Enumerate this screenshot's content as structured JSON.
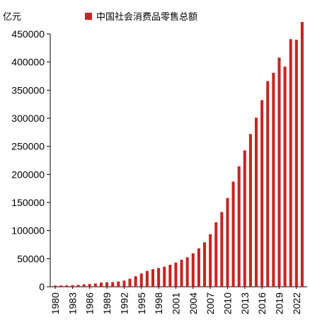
{
  "unit_label": "亿元",
  "colors": {
    "bar": "#c82423",
    "axis": "#000000"
  },
  "chart_data": {
    "type": "bar",
    "title": "",
    "xlabel": "",
    "ylabel": "亿元",
    "legend": {
      "position": "top-center",
      "entries": [
        "中国社会消费品零售总额"
      ]
    },
    "grid": false,
    "ylim": [
      0,
      450000
    ],
    "yticks": [
      0,
      50000,
      100000,
      150000,
      200000,
      250000,
      300000,
      350000,
      400000,
      450000
    ],
    "xtick_labels": [
      "1980",
      "1983",
      "1986",
      "1989",
      "1992",
      "1995",
      "1998",
      "2001",
      "2004",
      "2007",
      "2010",
      "2013",
      "2016",
      "2019",
      "2022"
    ],
    "categories": [
      "1980",
      "1981",
      "1982",
      "1983",
      "1984",
      "1985",
      "1986",
      "1987",
      "1988",
      "1989",
      "1990",
      "1991",
      "1992",
      "1993",
      "1994",
      "1995",
      "1996",
      "1997",
      "1998",
      "1999",
      "2000",
      "2001",
      "2002",
      "2003",
      "2004",
      "2005",
      "2006",
      "2007",
      "2008",
      "2009",
      "2010",
      "2011",
      "2012",
      "2013",
      "2014",
      "2015",
      "2016",
      "2017",
      "2018",
      "2019",
      "2020",
      "2021",
      "2022",
      "2023"
    ],
    "series": [
      {
        "name": "中国社会消费品零售总额",
        "values": [
          2140,
          2350,
          2570,
          2849,
          3376,
          4305,
          4950,
          5820,
          7440,
          8101,
          8300,
          9415,
          10994,
          14270,
          18623,
          23614,
          28360,
          31253,
          33378,
          35648,
          39106,
          43055,
          48136,
          52516,
          59501,
          68353,
          79145,
          93572,
          114830,
          133048,
          158008,
          187206,
          214433,
          242843,
          271896,
          300931,
          332316,
          366262,
          380987,
          408017,
          391981,
          440823,
          439733,
          471495
        ]
      }
    ]
  }
}
